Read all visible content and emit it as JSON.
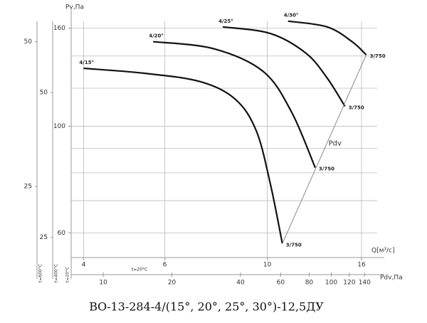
{
  "chart_data": {
    "type": "line",
    "title": "ВО-13-284-4/(15°, 20°, 25°, 30°)-12,5ДУ",
    "y_label": "Pv,Па",
    "x_label": "Q[м³/с]",
    "x_log": true,
    "y_log": true,
    "xlim": [
      3.76,
      17.3
    ],
    "xticks": [
      4,
      6,
      10,
      16
    ],
    "ylim": [
      53.3,
      177
    ],
    "yticks": [
      60,
      100,
      160
    ],
    "ygrid": [
      60,
      70,
      80,
      90,
      100,
      120,
      140,
      160
    ],
    "grid": true,
    "series": [
      {
        "name": "4/15°",
        "end_label": "3/750",
        "color": "#111111",
        "x": [
          4,
          5.37,
          7.12,
          8.51,
          9.46,
          10.15,
          10.78
        ],
        "values": [
          132,
          129,
          124,
          114,
          98,
          76,
          57
        ]
      },
      {
        "name": "4/20°",
        "end_label": "3/750",
        "color": "#111111",
        "x": [
          5.66,
          7.65,
          9.8,
          11.29,
          12.7
        ],
        "values": [
          150,
          145,
          130,
          107,
          82
        ]
      },
      {
        "name": "4/25°",
        "end_label": "3/750",
        "color": "#111111",
        "x": [
          8.01,
          10.15,
          12.12,
          13.48,
          14.73
        ],
        "values": [
          161,
          156,
          142,
          126,
          110
        ]
      },
      {
        "name": "4/30°",
        "end_label": "3/750",
        "color": "#111111",
        "x": [
          11.09,
          13.48,
          15.26,
          16.38
        ],
        "values": [
          165.5,
          161,
          150,
          140.8
        ]
      },
      {
        "name": "Pdv",
        "color": "#888888",
        "x": [
          10.78,
          16.38
        ],
        "values": [
          57,
          140.8
        ]
      }
    ],
    "pdv_axis": {
      "label": "Pdv,Па",
      "temperature": "t=20°C",
      "xlim": [
        7.23,
        159
      ],
      "xticks": [
        10,
        20,
        40,
        60,
        80,
        100,
        120,
        140
      ]
    },
    "aux_axes": [
      {
        "label": "t=600°C",
        "ylim": [
          17.8,
          59
        ],
        "yticks": [
          50,
          25
        ]
      },
      {
        "label": "t=400°C",
        "ylim": [
          22.7,
          75.3
        ],
        "yticks": [
          50,
          25
        ]
      }
    ],
    "main_axis_temperature": "t=20°C"
  }
}
